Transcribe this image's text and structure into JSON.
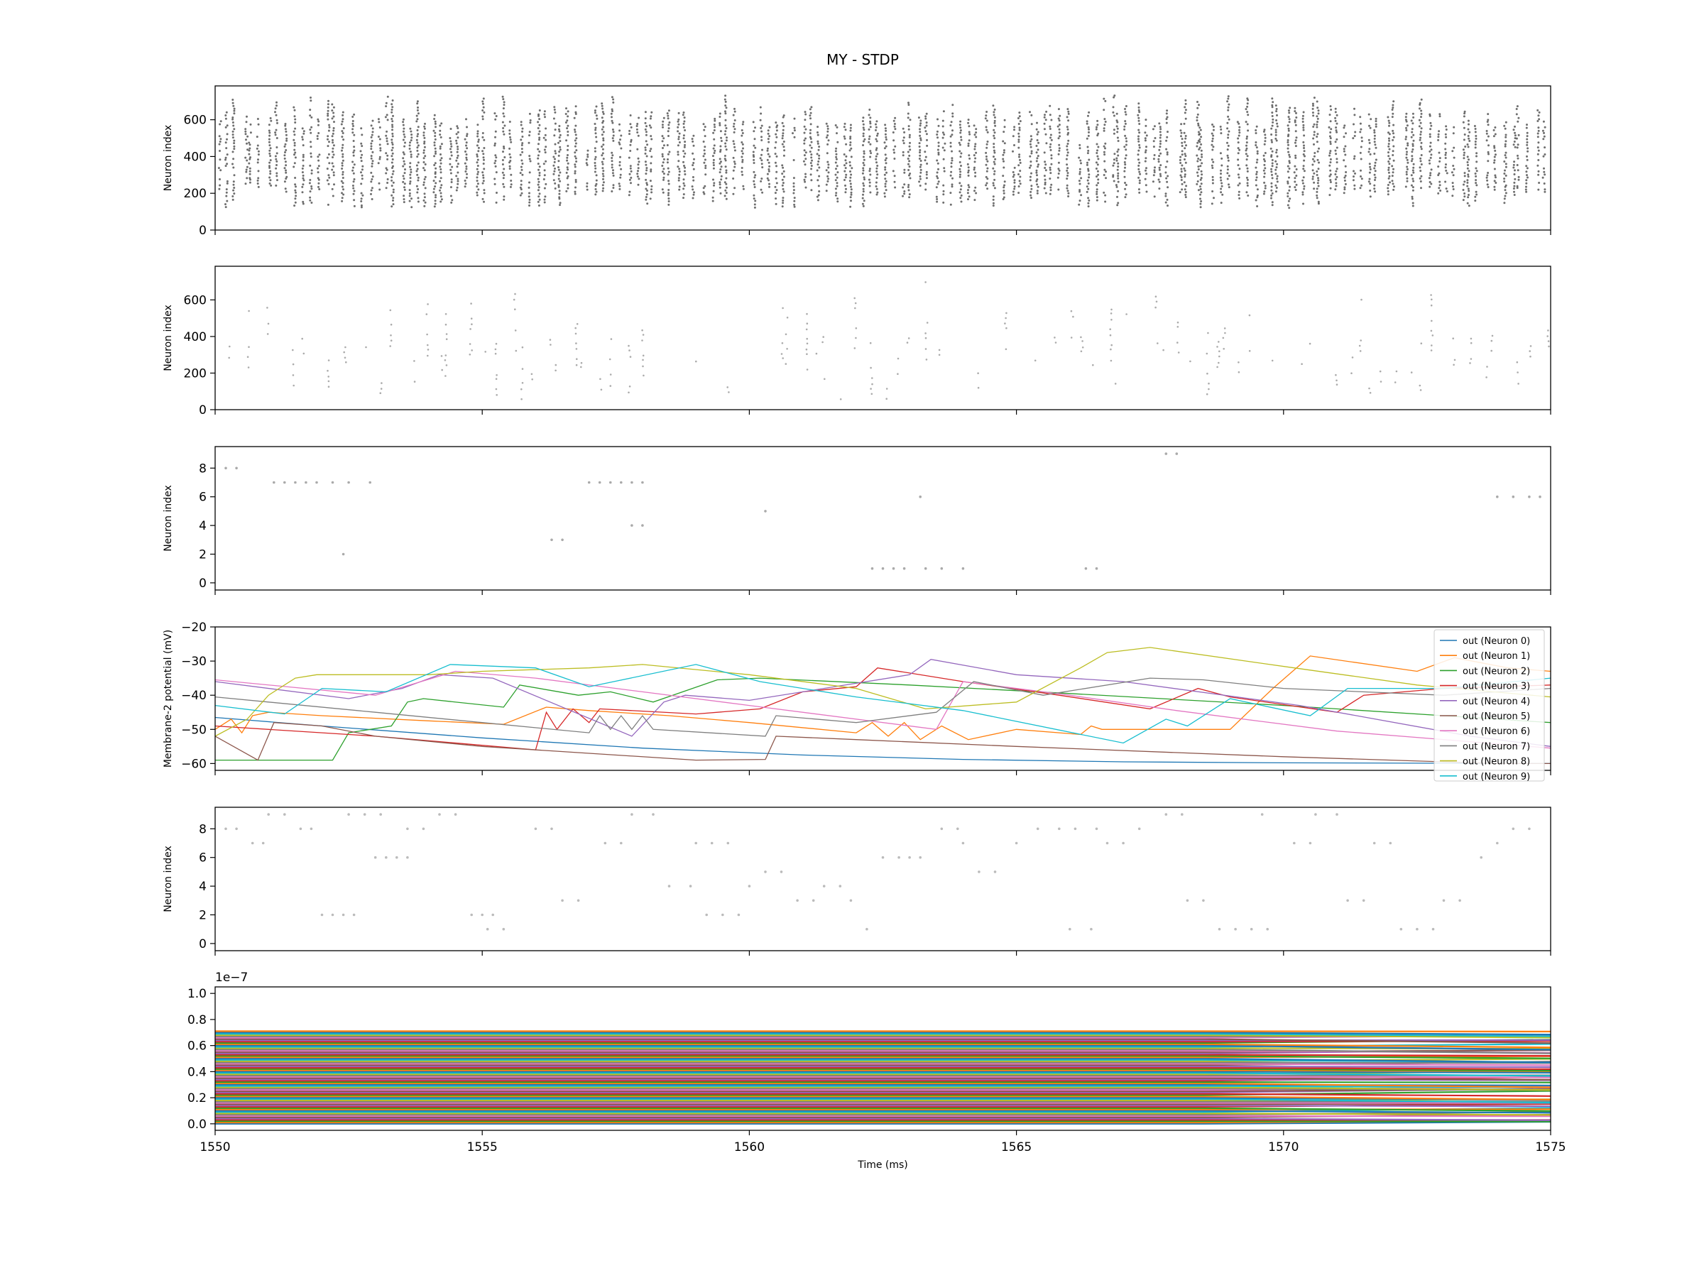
{
  "figure_title": "MY - STDP",
  "chart_data": [
    {
      "type": "scatter",
      "panel": "raster-1",
      "ylabel": "Neuron index",
      "ylim": [
        0,
        784
      ],
      "xlim": [
        1550,
        1575
      ],
      "yticks": [
        "0",
        "200",
        "400",
        "600"
      ],
      "yticks_values": [
        0,
        200,
        400,
        600
      ],
      "color": "#555555",
      "grid": false
    },
    {
      "type": "scatter",
      "panel": "raster-2",
      "ylabel": "Neuron index",
      "ylim": [
        0,
        784
      ],
      "xlim": [
        1550,
        1575
      ],
      "yticks": [
        "0",
        "200",
        "400",
        "600"
      ],
      "yticks_values": [
        0,
        200,
        400,
        600
      ],
      "color": "#888888",
      "grid": false
    },
    {
      "type": "scatter",
      "panel": "raster-3",
      "ylabel": "Neuron index",
      "ylim": [
        -0.5,
        9.5
      ],
      "xlim": [
        1550,
        1575
      ],
      "yticks": [
        "0",
        "2",
        "4",
        "6",
        "8"
      ],
      "yticks_values": [
        0,
        2,
        4,
        6,
        8
      ],
      "color": "#aaaaaa",
      "grid": false,
      "points": [
        [
          1550.2,
          8
        ],
        [
          1550.4,
          8
        ],
        [
          1551.1,
          7
        ],
        [
          1551.3,
          7
        ],
        [
          1551.5,
          7
        ],
        [
          1551.7,
          7
        ],
        [
          1551.9,
          7
        ],
        [
          1552.2,
          7
        ],
        [
          1552.5,
          7
        ],
        [
          1552.9,
          7
        ],
        [
          1552.4,
          2
        ],
        [
          1556.3,
          3
        ],
        [
          1556.5,
          3
        ],
        [
          1557.0,
          7
        ],
        [
          1557.2,
          7
        ],
        [
          1557.4,
          7
        ],
        [
          1557.6,
          7
        ],
        [
          1557.8,
          7
        ],
        [
          1558.0,
          7
        ],
        [
          1557.8,
          4
        ],
        [
          1558.0,
          4
        ],
        [
          1560.3,
          5
        ],
        [
          1562.3,
          1
        ],
        [
          1562.5,
          1
        ],
        [
          1562.7,
          1
        ],
        [
          1562.9,
          1
        ],
        [
          1563.3,
          1
        ],
        [
          1563.6,
          1
        ],
        [
          1564.0,
          1
        ],
        [
          1563.2,
          6
        ],
        [
          1566.3,
          1
        ],
        [
          1566.5,
          1
        ],
        [
          1567.8,
          9
        ],
        [
          1568.0,
          9
        ],
        [
          1574.0,
          6
        ],
        [
          1574.3,
          6
        ],
        [
          1574.6,
          6
        ],
        [
          1574.8,
          6
        ]
      ]
    },
    {
      "type": "line",
      "panel": "membrane",
      "ylabel": "Membrane-2 potential (mV)",
      "ylim": [
        -62,
        -20
      ],
      "xlim": [
        1550,
        1575
      ],
      "yticks": [
        "−60",
        "−50",
        "−40",
        "−30",
        "−20"
      ],
      "yticks_values": [
        -60,
        -50,
        -40,
        -30,
        -20
      ],
      "legend_position": "upper right",
      "grid": false,
      "series": [
        {
          "name": "out (Neuron 0)",
          "color": "#1f77b4",
          "x": [
            1550,
            1552,
            1555,
            1558,
            1561,
            1564,
            1567,
            1570,
            1575
          ],
          "values": [
            -46.5,
            -49,
            -52.5,
            -55.5,
            -57.5,
            -58.8,
            -59.5,
            -59.8,
            -60
          ]
        },
        {
          "name": "out (Neuron 1)",
          "color": "#ff7f0e",
          "x": [
            1550,
            1550.3,
            1550.5,
            1550.7,
            1551,
            1552,
            1554,
            1555.4,
            1556.2,
            1557,
            1558.5,
            1560,
            1562,
            1562.3,
            1562.6,
            1562.9,
            1563.2,
            1563.6,
            1564.1,
            1565,
            1566.2,
            1566.4,
            1566.6,
            1569,
            1569.8,
            1570.5,
            1572.5,
            1573.2,
            1574.2,
            1575
          ],
          "values": [
            -50,
            -47,
            -51,
            -46,
            -45,
            -46,
            -47.5,
            -48.5,
            -43.5,
            -44.5,
            -46,
            -48,
            -51,
            -48,
            -52,
            -48,
            -53,
            -49,
            -53,
            -50,
            -51.5,
            -49,
            -50,
            -50,
            -38,
            -28.5,
            -33,
            -29,
            -32,
            -33
          ]
        },
        {
          "name": "out (Neuron 2)",
          "color": "#2ca02c",
          "x": [
            1550,
            1552.2,
            1552.5,
            1553.3,
            1553.6,
            1553.9,
            1555.4,
            1555.7,
            1556.8,
            1557.4,
            1558.2,
            1559.4,
            1560.2,
            1563,
            1566,
            1570,
            1575
          ],
          "values": [
            -59,
            -59,
            -51,
            -49,
            -42,
            -41,
            -43.5,
            -37,
            -40,
            -39,
            -42,
            -35.5,
            -35,
            -37,
            -39.5,
            -43,
            -48
          ]
        },
        {
          "name": "out (Neuron 3)",
          "color": "#d62728",
          "x": [
            1550,
            1553,
            1556,
            1556.2,
            1556.4,
            1556.7,
            1557,
            1557.2,
            1559,
            1560.2,
            1561,
            1562,
            1562.4,
            1564,
            1565.8,
            1567.5,
            1568.4,
            1569,
            1571,
            1571.5,
            1573,
            1575
          ],
          "values": [
            -49,
            -52,
            -56,
            -45,
            -50,
            -44,
            -48,
            -44,
            -45.5,
            -44,
            -39,
            -37.5,
            -32,
            -36,
            -40,
            -44,
            -38,
            -40.5,
            -45,
            -40,
            -38,
            -37
          ]
        },
        {
          "name": "out (Neuron 4)",
          "color": "#9467bd",
          "x": [
            1550,
            1552.5,
            1553.5,
            1554.2,
            1555.2,
            1557.8,
            1558.4,
            1558.8,
            1560,
            1563,
            1563.4,
            1565,
            1567,
            1570.3,
            1573.5,
            1575
          ],
          "values": [
            -36,
            -41,
            -38,
            -34,
            -35,
            -52,
            -42,
            -40,
            -41.5,
            -34,
            -29.5,
            -34,
            -36,
            -43,
            -52,
            -55
          ]
        },
        {
          "name": "out (Neuron 5)",
          "color": "#8c564b",
          "x": [
            1550,
            1550.8,
            1551.1,
            1552,
            1553,
            1555,
            1557,
            1559,
            1560.3,
            1560.5,
            1562,
            1565,
            1570,
            1574,
            1575
          ],
          "values": [
            -52,
            -59,
            -48,
            -49,
            -52,
            -55,
            -57,
            -59,
            -58.8,
            -52,
            -53,
            -55,
            -58,
            -60,
            -60
          ]
        },
        {
          "name": "out (Neuron 6)",
          "color": "#e377c2",
          "x": [
            1550,
            1553,
            1554.5,
            1556,
            1558,
            1560,
            1563.5,
            1564,
            1566,
            1568,
            1571,
            1575
          ],
          "values": [
            -35.5,
            -40,
            -33,
            -35,
            -39,
            -43,
            -50,
            -36,
            -40,
            -44.5,
            -50.5,
            -55.5
          ]
        },
        {
          "name": "out (Neuron 7)",
          "color": "#7f7f7f",
          "x": [
            1550,
            1551,
            1553,
            1555,
            1557,
            1557.2,
            1557.4,
            1557.6,
            1557.8,
            1558.0,
            1558.2,
            1560.3,
            1560.5,
            1562,
            1563.5,
            1564.2,
            1565.5,
            1567.5,
            1568.5,
            1570,
            1573,
            1575
          ],
          "values": [
            -40.5,
            -42,
            -45,
            -48,
            -51,
            -46,
            -50,
            -46,
            -50,
            -46,
            -50,
            -52,
            -46,
            -48,
            -45,
            -36,
            -40,
            -35,
            -35.5,
            -38,
            -40,
            -38
          ]
        },
        {
          "name": "out (Neuron 8)",
          "color": "#bcbd22",
          "x": [
            1550,
            1550.6,
            1551,
            1551.5,
            1551.9,
            1554,
            1555,
            1557,
            1558,
            1560,
            1562,
            1563.3,
            1565,
            1566.2,
            1566.7,
            1567.5,
            1570.2,
            1572.5,
            1575
          ],
          "values": [
            -52,
            -47,
            -40,
            -35,
            -34,
            -34,
            -33,
            -32,
            -31,
            -34,
            -38,
            -44,
            -42,
            -32,
            -27.5,
            -26,
            -32,
            -37,
            -40.5
          ]
        },
        {
          "name": "out (Neuron 9)",
          "color": "#17becf",
          "x": [
            1550,
            1551.3,
            1552,
            1553.2,
            1554.4,
            1556,
            1557,
            1559,
            1560.2,
            1562,
            1564,
            1567,
            1567.8,
            1568.2,
            1569,
            1570.5,
            1571.2,
            1573,
            1575
          ],
          "values": [
            -43,
            -45.5,
            -38,
            -39,
            -31,
            -32,
            -37.5,
            -31,
            -36,
            -40.5,
            -44.5,
            -54,
            -47,
            -49,
            -41,
            -46,
            -38,
            -38,
            -35
          ]
        }
      ]
    },
    {
      "type": "scatter",
      "panel": "raster-4",
      "ylabel": "Neuron index",
      "ylim": [
        -0.5,
        9.5
      ],
      "xlim": [
        1550,
        1575
      ],
      "yticks": [
        "0",
        "2",
        "4",
        "6",
        "8"
      ],
      "yticks_values": [
        0,
        2,
        4,
        6,
        8
      ],
      "color": "#bbbbbb",
      "grid": false,
      "points": [
        [
          1550.2,
          8
        ],
        [
          1550.4,
          8
        ],
        [
          1550.7,
          7
        ],
        [
          1550.9,
          7
        ],
        [
          1551.0,
          9
        ],
        [
          1551.3,
          9
        ],
        [
          1551.6,
          8
        ],
        [
          1551.8,
          8
        ],
        [
          1552.0,
          2
        ],
        [
          1552.2,
          2
        ],
        [
          1552.4,
          2
        ],
        [
          1552.6,
          2
        ],
        [
          1552.5,
          9
        ],
        [
          1552.8,
          9
        ],
        [
          1553.1,
          9
        ],
        [
          1553.0,
          6
        ],
        [
          1553.2,
          6
        ],
        [
          1553.4,
          6
        ],
        [
          1553.6,
          6
        ],
        [
          1553.6,
          8
        ],
        [
          1553.9,
          8
        ],
        [
          1554.2,
          9
        ],
        [
          1554.5,
          9
        ],
        [
          1554.8,
          2
        ],
        [
          1555.0,
          2
        ],
        [
          1555.2,
          2
        ],
        [
          1555.1,
          1
        ],
        [
          1555.4,
          1
        ],
        [
          1556.0,
          8
        ],
        [
          1556.3,
          8
        ],
        [
          1556.5,
          3
        ],
        [
          1556.8,
          3
        ],
        [
          1557.3,
          7
        ],
        [
          1557.6,
          7
        ],
        [
          1557.8,
          9
        ],
        [
          1558.2,
          9
        ],
        [
          1558.5,
          4
        ],
        [
          1558.9,
          4
        ],
        [
          1559.0,
          7
        ],
        [
          1559.3,
          7
        ],
        [
          1559.6,
          7
        ],
        [
          1559.2,
          2
        ],
        [
          1559.5,
          2
        ],
        [
          1559.8,
          2
        ],
        [
          1560.0,
          4
        ],
        [
          1560.3,
          5
        ],
        [
          1560.6,
          5
        ],
        [
          1560.9,
          3
        ],
        [
          1561.2,
          3
        ],
        [
          1561.4,
          4
        ],
        [
          1561.7,
          4
        ],
        [
          1561.9,
          3
        ],
        [
          1562.2,
          1
        ],
        [
          1562.5,
          6
        ],
        [
          1562.8,
          6
        ],
        [
          1563.0,
          6
        ],
        [
          1563.2,
          6
        ],
        [
          1563.6,
          8
        ],
        [
          1563.9,
          8
        ],
        [
          1564.0,
          7
        ],
        [
          1564.3,
          5
        ],
        [
          1564.6,
          5
        ],
        [
          1565.0,
          7
        ],
        [
          1565.4,
          8
        ],
        [
          1565.8,
          8
        ],
        [
          1566.1,
          8
        ],
        [
          1566.5,
          8
        ],
        [
          1566.0,
          1
        ],
        [
          1566.4,
          1
        ],
        [
          1566.7,
          7
        ],
        [
          1567.0,
          7
        ],
        [
          1567.3,
          8
        ],
        [
          1567.8,
          9
        ],
        [
          1568.1,
          9
        ],
        [
          1568.2,
          3
        ],
        [
          1568.5,
          3
        ],
        [
          1568.8,
          1
        ],
        [
          1569.1,
          1
        ],
        [
          1569.4,
          1
        ],
        [
          1569.7,
          1
        ],
        [
          1569.6,
          9
        ],
        [
          1570.2,
          7
        ],
        [
          1570.5,
          7
        ],
        [
          1570.6,
          9
        ],
        [
          1571.0,
          9
        ],
        [
          1571.2,
          3
        ],
        [
          1571.5,
          3
        ],
        [
          1571.7,
          7
        ],
        [
          1572.0,
          7
        ],
        [
          1572.2,
          1
        ],
        [
          1572.5,
          1
        ],
        [
          1572.8,
          1
        ],
        [
          1573.0,
          3
        ],
        [
          1573.3,
          3
        ],
        [
          1573.7,
          6
        ],
        [
          1574.0,
          7
        ],
        [
          1574.3,
          8
        ],
        [
          1574.6,
          8
        ]
      ]
    },
    {
      "type": "line",
      "panel": "weights",
      "ylabel": "",
      "scale_note": "1e−7",
      "ylim": [
        -0.05,
        1.05
      ],
      "xlim": [
        1550,
        1575
      ],
      "yticks": [
        "0.0",
        "0.2",
        "0.4",
        "0.6",
        "0.8",
        "1.0"
      ],
      "yticks_values": [
        0.0,
        0.2,
        0.4,
        0.6,
        0.8,
        1.0
      ],
      "xticks": [
        "1550",
        "1555",
        "1560",
        "1565",
        "1570",
        "1575"
      ],
      "xticks_values": [
        1550,
        1555,
        1560,
        1565,
        1570,
        1575
      ],
      "xlabel": "Time (ms)",
      "band_range": [
        0.0,
        0.71
      ],
      "band_line_count": 72,
      "grid": false
    }
  ],
  "colors": {
    "cycle": [
      "#1f77b4",
      "#ff7f0e",
      "#2ca02c",
      "#d62728",
      "#9467bd",
      "#8c564b",
      "#e377c2",
      "#7f7f7f",
      "#bcbd22",
      "#17becf"
    ]
  }
}
